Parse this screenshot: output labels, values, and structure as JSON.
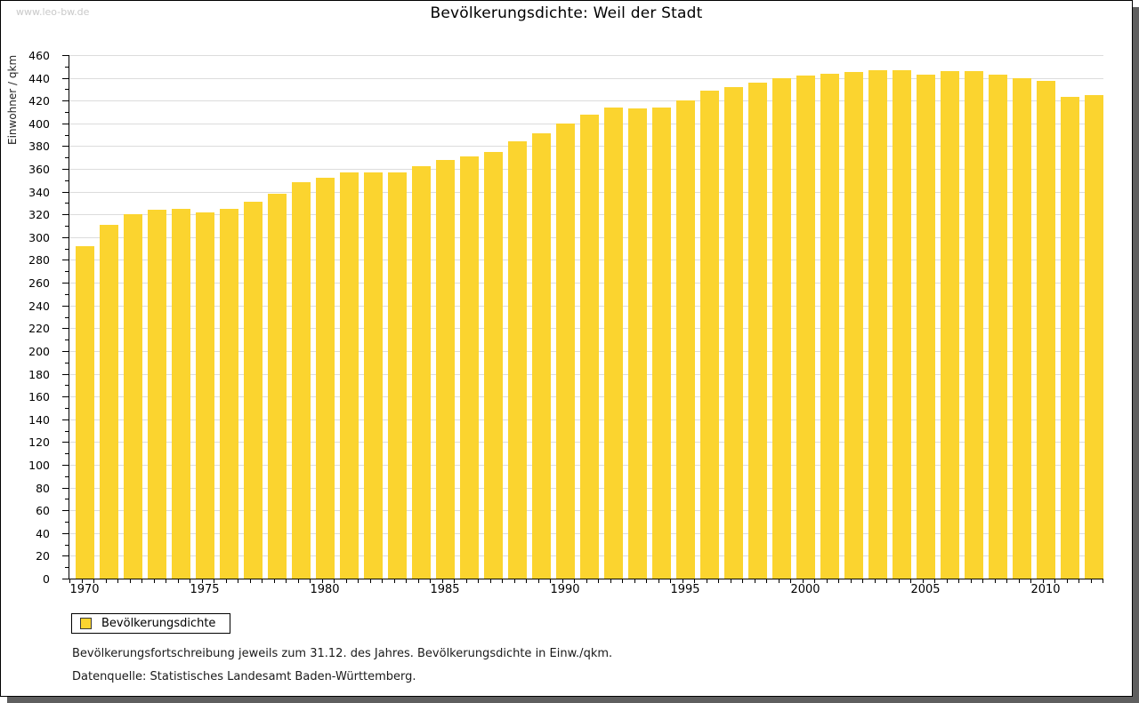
{
  "page": {
    "watermark": "www.leo-bw.de",
    "title": "Bevölkerungsdichte: Weil der Stadt"
  },
  "legend": {
    "label": "Bevölkerungsdichte"
  },
  "notes": {
    "line1": "Bevölkerungsfortschreibung jeweils zum 31.12. des Jahres. Bevölkerungsdichte in Einw./qkm.",
    "line2": "Datenquelle: Statistisches Landesamt Baden-Württemberg."
  },
  "colors": {
    "bar": "#FBD42F",
    "grid": "#dcdcdc",
    "axis": "#000000",
    "watermark": "#c9c9c9",
    "frame_shadow": "#5f5f5f"
  },
  "chart_data": {
    "type": "bar",
    "title": "Bevölkerungsdichte: Weil der Stadt",
    "xlabel": "",
    "ylabel": "Einwohner / qkm",
    "ylim": [
      0,
      460
    ],
    "y_major_step": 20,
    "y_minor_step": 10,
    "grid": true,
    "legend_position": "bottom-left",
    "categories": [
      1970,
      1971,
      1972,
      1973,
      1974,
      1975,
      1976,
      1977,
      1978,
      1979,
      1980,
      1981,
      1982,
      1983,
      1984,
      1985,
      1986,
      1987,
      1988,
      1989,
      1990,
      1991,
      1992,
      1993,
      1994,
      1995,
      1996,
      1997,
      1998,
      1999,
      2000,
      2001,
      2002,
      2003,
      2004,
      2005,
      2006,
      2007,
      2008,
      2009,
      2010,
      2011,
      2012
    ],
    "values": [
      292,
      311,
      320,
      324,
      325,
      322,
      325,
      331,
      338,
      348,
      352,
      357,
      357,
      357,
      362,
      368,
      371,
      375,
      384,
      391,
      400,
      408,
      414,
      413,
      414,
      420,
      429,
      432,
      436,
      440,
      442,
      444,
      445,
      447,
      447,
      443,
      446,
      446,
      443,
      440,
      437,
      423,
      425
    ],
    "x_tick_labels": [
      1970,
      1975,
      1980,
      1985,
      1990,
      1995,
      2000,
      2005,
      2010
    ]
  }
}
